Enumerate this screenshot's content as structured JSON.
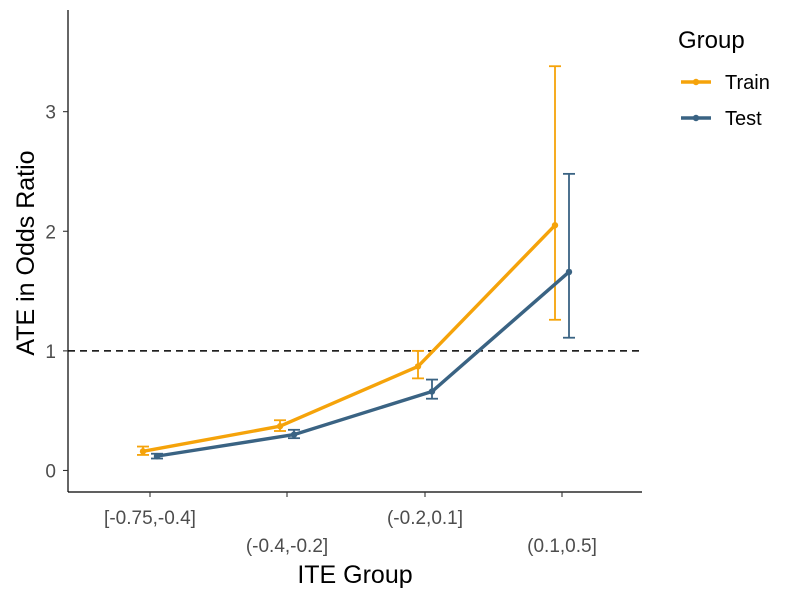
{
  "chart_data": {
    "type": "line",
    "title": "",
    "xlabel": "ITE Group",
    "ylabel": "ATE in Odds Ratio",
    "categories": [
      "[-0.75,-0.4]",
      "(-0.4,-0.2]",
      "(-0.2,0.1]",
      "(0.1,0.5]"
    ],
    "yticks": [
      0,
      1,
      2,
      3
    ],
    "ylim": [
      -0.18,
      3.85
    ],
    "reference_line": {
      "y": 1,
      "style": "dashed",
      "color": "#000000"
    },
    "grid": false,
    "legend": {
      "title": "Group",
      "position": "right"
    },
    "series": [
      {
        "name": "Train",
        "color": "#F5A30A",
        "values": [
          0.16,
          0.37,
          0.87,
          2.05
        ],
        "error_low": [
          0.13,
          0.33,
          0.77,
          1.26
        ],
        "error_high": [
          0.2,
          0.42,
          1.0,
          3.38
        ]
      },
      {
        "name": "Test",
        "color": "#3A6383",
        "values": [
          0.12,
          0.3,
          0.66,
          1.66
        ],
        "error_low": [
          0.1,
          0.27,
          0.6,
          1.11
        ],
        "error_high": [
          0.14,
          0.34,
          0.76,
          2.48
        ]
      }
    ]
  }
}
